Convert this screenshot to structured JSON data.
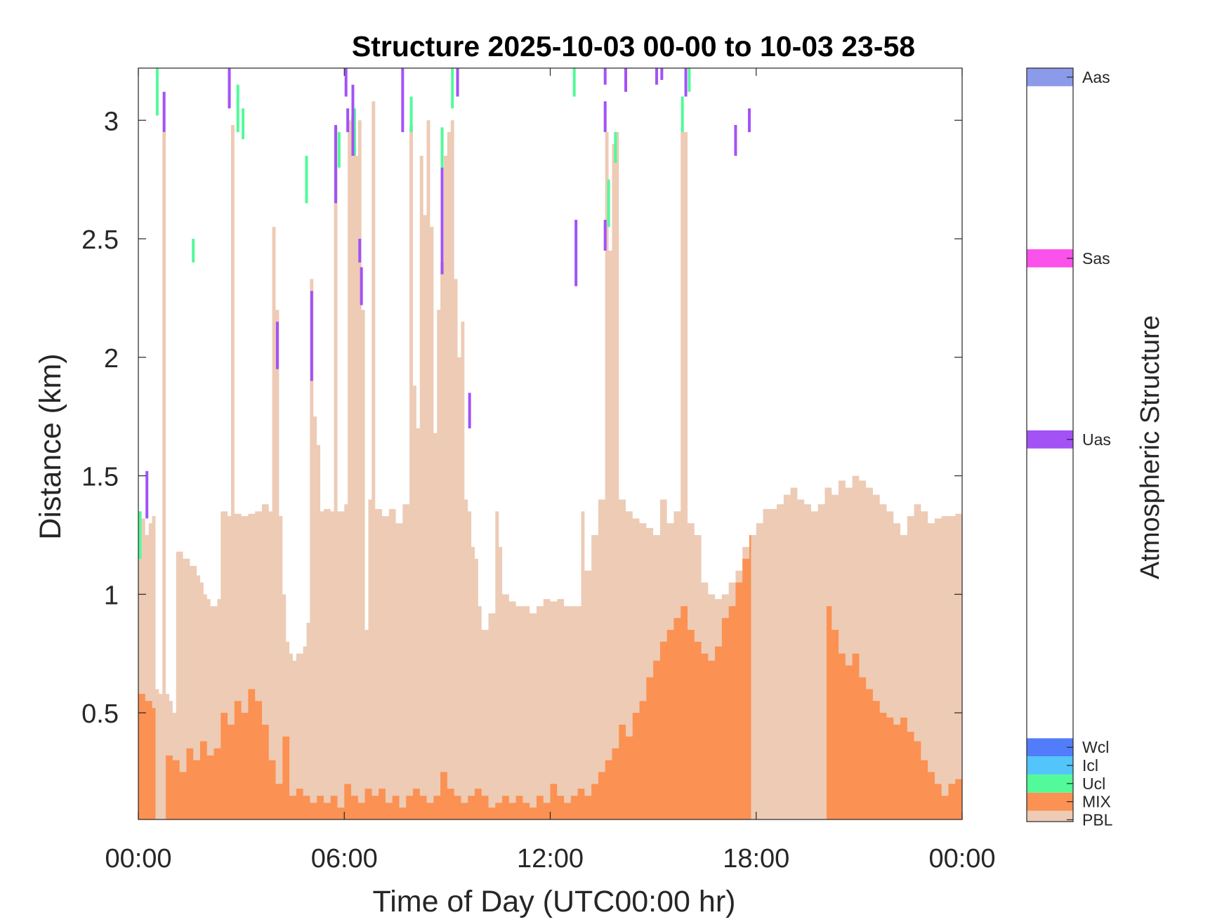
{
  "chart_data": {
    "type": "heatmap",
    "title": "Structure 2025-10-03 00-00 to 10-03 23-58",
    "xlabel": "Time of Day (UTC00:00 hr)",
    "ylabel": "Distance (km)",
    "xlim": [
      0,
      24
    ],
    "ylim": [
      0.05,
      3.22
    ],
    "x_ticks": [
      0,
      6,
      12,
      18,
      24
    ],
    "x_tick_labels": [
      "00:00",
      "06:00",
      "12:00",
      "18:00",
      "00:00"
    ],
    "y_ticks": [
      0.5,
      1,
      1.5,
      2,
      2.5,
      3
    ],
    "y_tick_labels": [
      "0.5",
      "1",
      "1.5",
      "2",
      "2.5",
      "3"
    ],
    "grid": false,
    "colorbar": {
      "label": "Atmospheric Structure",
      "categories": [
        {
          "name": "PBL",
          "color": "#edcbb5",
          "pos": 0.0
        },
        {
          "name": "MIX",
          "color": "#fb9152",
          "pos": 1.0
        },
        {
          "name": "Ucl",
          "color": "#52fa99",
          "pos": 2.0
        },
        {
          "name": "Icl",
          "color": "#52c5fa",
          "pos": 3.0
        },
        {
          "name": "Wcl",
          "color": "#527dfa",
          "pos": 4.0
        },
        {
          "name": "Uas",
          "color": "#a352f5",
          "pos": 21.0
        },
        {
          "name": "Sas",
          "color": "#fa52ea",
          "pos": 31.0
        },
        {
          "name": "Aas",
          "color": "#8c9aea",
          "pos": 41.0
        }
      ],
      "range": [
        -0.1,
        41.5
      ]
    },
    "pbl_top": [
      [
        0.0,
        1.35
      ],
      [
        0.1,
        1.32
      ],
      [
        0.2,
        1.25
      ],
      [
        0.3,
        1.3
      ],
      [
        0.4,
        1.33
      ],
      [
        0.5,
        0.6
      ],
      [
        0.6,
        0.58
      ],
      [
        0.7,
        2.95
      ],
      [
        0.8,
        0.58
      ],
      [
        0.9,
        0.55
      ],
      [
        1.0,
        0.5
      ],
      [
        1.1,
        1.18
      ],
      [
        1.3,
        1.15
      ],
      [
        1.5,
        1.12
      ],
      [
        1.7,
        1.08
      ],
      [
        1.8,
        1.05
      ],
      [
        1.9,
        1.0
      ],
      [
        2.0,
        0.98
      ],
      [
        2.1,
        0.95
      ],
      [
        2.3,
        0.98
      ],
      [
        2.4,
        1.35
      ],
      [
        2.6,
        1.33
      ],
      [
        2.7,
        2.98
      ],
      [
        2.8,
        1.34
      ],
      [
        3.0,
        1.33
      ],
      [
        3.2,
        1.34
      ],
      [
        3.4,
        1.35
      ],
      [
        3.6,
        1.38
      ],
      [
        3.8,
        1.35
      ],
      [
        3.9,
        2.55
      ],
      [
        4.0,
        2.2
      ],
      [
        4.1,
        1.33
      ],
      [
        4.2,
        1.0
      ],
      [
        4.3,
        0.8
      ],
      [
        4.4,
        0.75
      ],
      [
        4.5,
        0.72
      ],
      [
        4.6,
        0.75
      ],
      [
        4.7,
        0.75
      ],
      [
        4.8,
        0.78
      ],
      [
        4.9,
        0.88
      ],
      [
        5.0,
        2.33
      ],
      [
        5.1,
        1.75
      ],
      [
        5.2,
        1.63
      ],
      [
        5.3,
        1.35
      ],
      [
        5.4,
        1.36
      ],
      [
        5.6,
        1.35
      ],
      [
        5.7,
        2.97
      ],
      [
        5.8,
        1.35
      ],
      [
        6.0,
        1.38
      ],
      [
        6.1,
        3.0
      ],
      [
        6.2,
        3.02
      ],
      [
        6.3,
        2.85
      ],
      [
        6.4,
        3.0
      ],
      [
        6.5,
        2.2
      ],
      [
        6.6,
        0.85
      ],
      [
        6.7,
        1.4
      ],
      [
        6.8,
        3.08
      ],
      [
        6.9,
        1.36
      ],
      [
        7.1,
        1.33
      ],
      [
        7.3,
        1.36
      ],
      [
        7.5,
        1.3
      ],
      [
        7.7,
        1.38
      ],
      [
        7.9,
        2.98
      ],
      [
        8.0,
        1.88
      ],
      [
        8.1,
        1.7
      ],
      [
        8.2,
        2.85
      ],
      [
        8.3,
        2.6
      ],
      [
        8.4,
        3.0
      ],
      [
        8.5,
        2.55
      ],
      [
        8.6,
        1.68
      ],
      [
        8.7,
        2.2
      ],
      [
        8.8,
        2.4
      ],
      [
        8.9,
        2.85
      ],
      [
        9.0,
        2.95
      ],
      [
        9.1,
        3.0
      ],
      [
        9.2,
        2.33
      ],
      [
        9.3,
        2.0
      ],
      [
        9.4,
        2.15
      ],
      [
        9.5,
        1.4
      ],
      [
        9.6,
        1.35
      ],
      [
        9.7,
        1.2
      ],
      [
        9.8,
        1.15
      ],
      [
        9.9,
        0.95
      ],
      [
        10.0,
        0.85
      ],
      [
        10.2,
        0.92
      ],
      [
        10.4,
        1.35
      ],
      [
        10.5,
        1.2
      ],
      [
        10.6,
        1.0
      ],
      [
        10.8,
        0.97
      ],
      [
        11.0,
        0.95
      ],
      [
        11.2,
        0.95
      ],
      [
        11.4,
        0.92
      ],
      [
        11.6,
        0.95
      ],
      [
        11.8,
        0.98
      ],
      [
        12.0,
        0.97
      ],
      [
        12.2,
        0.98
      ],
      [
        12.4,
        0.95
      ],
      [
        12.6,
        0.95
      ],
      [
        12.8,
        0.95
      ],
      [
        12.9,
        1.35
      ],
      [
        13.0,
        1.1
      ],
      [
        13.2,
        1.25
      ],
      [
        13.4,
        1.4
      ],
      [
        13.6,
        2.95
      ],
      [
        13.7,
        2.45
      ],
      [
        13.8,
        2.9
      ],
      [
        13.9,
        2.95
      ],
      [
        14.0,
        1.4
      ],
      [
        14.2,
        1.35
      ],
      [
        14.4,
        1.32
      ],
      [
        14.6,
        1.3
      ],
      [
        14.8,
        1.28
      ],
      [
        15.0,
        1.25
      ],
      [
        15.2,
        1.4
      ],
      [
        15.4,
        1.3
      ],
      [
        15.6,
        1.35
      ],
      [
        15.8,
        2.95
      ],
      [
        16.0,
        1.3
      ],
      [
        16.2,
        1.25
      ],
      [
        16.4,
        1.05
      ],
      [
        16.6,
        1.0
      ],
      [
        16.8,
        0.98
      ],
      [
        17.0,
        1.0
      ],
      [
        17.2,
        1.05
      ],
      [
        17.4,
        1.1
      ],
      [
        17.6,
        1.2
      ],
      [
        17.8,
        1.25
      ],
      [
        18.0,
        1.3
      ],
      [
        18.2,
        1.36
      ],
      [
        18.4,
        1.36
      ],
      [
        18.6,
        1.38
      ],
      [
        18.8,
        1.42
      ],
      [
        19.0,
        1.45
      ],
      [
        19.2,
        1.4
      ],
      [
        19.4,
        1.38
      ],
      [
        19.6,
        1.35
      ],
      [
        19.8,
        1.38
      ],
      [
        20.0,
        1.45
      ],
      [
        20.2,
        1.42
      ],
      [
        20.4,
        1.48
      ],
      [
        20.6,
        1.45
      ],
      [
        20.8,
        1.5
      ],
      [
        21.0,
        1.48
      ],
      [
        21.2,
        1.45
      ],
      [
        21.4,
        1.42
      ],
      [
        21.6,
        1.38
      ],
      [
        21.8,
        1.35
      ],
      [
        22.0,
        1.3
      ],
      [
        22.2,
        1.25
      ],
      [
        22.4,
        1.33
      ],
      [
        22.6,
        1.38
      ],
      [
        22.8,
        1.35
      ],
      [
        23.0,
        1.3
      ],
      [
        23.2,
        1.32
      ],
      [
        23.4,
        1.33
      ],
      [
        23.6,
        1.33
      ],
      [
        23.8,
        1.34
      ],
      [
        24.0,
        1.34
      ]
    ],
    "mix_top": [
      [
        0.0,
        0.58
      ],
      [
        0.2,
        0.55
      ],
      [
        0.4,
        0.52
      ],
      [
        0.5,
        0.05
      ],
      [
        0.8,
        0.32
      ],
      [
        1.0,
        0.3
      ],
      [
        1.2,
        0.25
      ],
      [
        1.4,
        0.35
      ],
      [
        1.6,
        0.3
      ],
      [
        1.8,
        0.38
      ],
      [
        2.0,
        0.32
      ],
      [
        2.2,
        0.35
      ],
      [
        2.4,
        0.5
      ],
      [
        2.6,
        0.45
      ],
      [
        2.8,
        0.55
      ],
      [
        3.0,
        0.5
      ],
      [
        3.2,
        0.6
      ],
      [
        3.4,
        0.55
      ],
      [
        3.6,
        0.45
      ],
      [
        3.8,
        0.3
      ],
      [
        4.0,
        0.2
      ],
      [
        4.2,
        0.4
      ],
      [
        4.4,
        0.15
      ],
      [
        4.6,
        0.18
      ],
      [
        4.8,
        0.15
      ],
      [
        5.0,
        0.12
      ],
      [
        5.2,
        0.15
      ],
      [
        5.4,
        0.12
      ],
      [
        5.6,
        0.15
      ],
      [
        5.8,
        0.1
      ],
      [
        6.0,
        0.2
      ],
      [
        6.2,
        0.15
      ],
      [
        6.4,
        0.12
      ],
      [
        6.6,
        0.18
      ],
      [
        6.8,
        0.15
      ],
      [
        7.0,
        0.18
      ],
      [
        7.2,
        0.12
      ],
      [
        7.4,
        0.15
      ],
      [
        7.6,
        0.1
      ],
      [
        7.8,
        0.15
      ],
      [
        8.0,
        0.18
      ],
      [
        8.2,
        0.15
      ],
      [
        8.4,
        0.12
      ],
      [
        8.6,
        0.15
      ],
      [
        8.8,
        0.25
      ],
      [
        9.0,
        0.18
      ],
      [
        9.2,
        0.15
      ],
      [
        9.4,
        0.12
      ],
      [
        9.6,
        0.15
      ],
      [
        9.8,
        0.18
      ],
      [
        10.0,
        0.15
      ],
      [
        10.2,
        0.1
      ],
      [
        10.4,
        0.12
      ],
      [
        10.6,
        0.15
      ],
      [
        10.8,
        0.12
      ],
      [
        11.0,
        0.15
      ],
      [
        11.2,
        0.12
      ],
      [
        11.4,
        0.1
      ],
      [
        11.6,
        0.15
      ],
      [
        11.8,
        0.12
      ],
      [
        12.0,
        0.2
      ],
      [
        12.2,
        0.15
      ],
      [
        12.4,
        0.12
      ],
      [
        12.6,
        0.15
      ],
      [
        12.8,
        0.18
      ],
      [
        13.0,
        0.15
      ],
      [
        13.2,
        0.2
      ],
      [
        13.4,
        0.25
      ],
      [
        13.6,
        0.3
      ],
      [
        13.8,
        0.35
      ],
      [
        14.0,
        0.45
      ],
      [
        14.2,
        0.4
      ],
      [
        14.4,
        0.5
      ],
      [
        14.6,
        0.55
      ],
      [
        14.8,
        0.65
      ],
      [
        15.0,
        0.72
      ],
      [
        15.2,
        0.8
      ],
      [
        15.4,
        0.85
      ],
      [
        15.6,
        0.9
      ],
      [
        15.8,
        0.95
      ],
      [
        16.0,
        0.85
      ],
      [
        16.2,
        0.8
      ],
      [
        16.4,
        0.75
      ],
      [
        16.6,
        0.72
      ],
      [
        16.8,
        0.78
      ],
      [
        17.0,
        0.9
      ],
      [
        17.2,
        0.95
      ],
      [
        17.4,
        1.05
      ],
      [
        17.6,
        1.15
      ],
      [
        17.8,
        1.25
      ],
      [
        17.85,
        0.05
      ],
      [
        20.0,
        0.05
      ],
      [
        20.05,
        0.95
      ],
      [
        20.2,
        0.85
      ],
      [
        20.4,
        0.75
      ],
      [
        20.6,
        0.7
      ],
      [
        20.8,
        0.75
      ],
      [
        21.0,
        0.65
      ],
      [
        21.2,
        0.6
      ],
      [
        21.4,
        0.55
      ],
      [
        21.6,
        0.5
      ],
      [
        21.8,
        0.48
      ],
      [
        22.0,
        0.45
      ],
      [
        22.2,
        0.48
      ],
      [
        22.4,
        0.42
      ],
      [
        22.6,
        0.38
      ],
      [
        22.8,
        0.3
      ],
      [
        23.0,
        0.25
      ],
      [
        23.2,
        0.2
      ],
      [
        23.4,
        0.15
      ],
      [
        23.6,
        0.2
      ],
      [
        23.8,
        0.22
      ],
      [
        24.0,
        0.2
      ]
    ],
    "ucl_segments": [
      [
        0.05,
        1.15,
        1.35
      ],
      [
        0.55,
        3.02,
        3.22
      ],
      [
        1.6,
        2.4,
        2.5
      ],
      [
        2.9,
        2.95,
        3.15
      ],
      [
        3.05,
        2.92,
        3.05
      ],
      [
        4.9,
        2.65,
        2.85
      ],
      [
        5.85,
        2.8,
        2.95
      ],
      [
        6.3,
        2.85,
        3.05
      ],
      [
        7.95,
        2.95,
        3.1
      ],
      [
        8.85,
        2.78,
        2.97
      ],
      [
        9.15,
        3.05,
        3.22
      ],
      [
        12.7,
        3.1,
        3.22
      ],
      [
        13.7,
        2.55,
        2.75
      ],
      [
        13.9,
        2.82,
        2.95
      ],
      [
        15.85,
        2.95,
        3.1
      ],
      [
        16.05,
        3.12,
        3.22
      ]
    ],
    "uas_segments": [
      [
        0.25,
        1.32,
        1.52
      ],
      [
        0.75,
        2.95,
        3.12
      ],
      [
        2.65,
        3.05,
        3.22
      ],
      [
        4.05,
        1.95,
        2.15
      ],
      [
        5.05,
        1.9,
        2.28
      ],
      [
        5.75,
        2.65,
        2.98
      ],
      [
        6.05,
        3.1,
        3.22
      ],
      [
        6.1,
        2.95,
        3.05
      ],
      [
        6.25,
        2.85,
        3.15
      ],
      [
        6.45,
        2.4,
        2.5
      ],
      [
        6.5,
        2.22,
        2.38
      ],
      [
        7.7,
        2.95,
        3.22
      ],
      [
        8.85,
        2.35,
        2.8
      ],
      [
        9.3,
        3.1,
        3.22
      ],
      [
        9.65,
        1.7,
        1.85
      ],
      [
        12.75,
        2.3,
        2.58
      ],
      [
        13.6,
        2.95,
        3.08
      ],
      [
        13.6,
        2.45,
        2.58
      ],
      [
        13.6,
        3.15,
        3.22
      ],
      [
        14.2,
        3.12,
        3.22
      ],
      [
        15.1,
        3.15,
        3.22
      ],
      [
        15.25,
        3.17,
        3.22
      ],
      [
        15.95,
        3.1,
        3.22
      ],
      [
        17.4,
        2.85,
        2.98
      ],
      [
        17.8,
        2.95,
        3.05
      ]
    ]
  }
}
